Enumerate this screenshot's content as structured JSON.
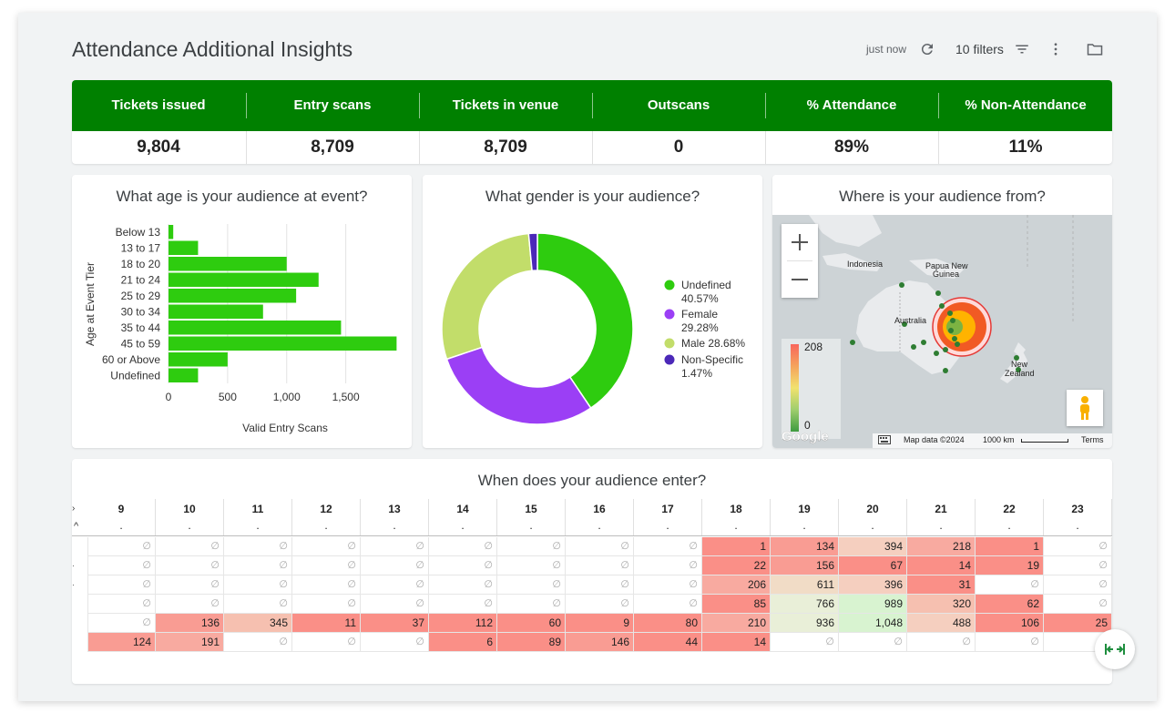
{
  "header": {
    "title": "Attendance Additional Insights",
    "refreshed": "just now",
    "filters_label": "10 filters"
  },
  "kpis": [
    {
      "label": "Tickets issued",
      "value": "9,804"
    },
    {
      "label": "Entry scans",
      "value": "8,709"
    },
    {
      "label": "Tickets in venue",
      "value": "8,709"
    },
    {
      "label": "Outscans",
      "value": "0"
    },
    {
      "label": "% Attendance",
      "value": "89%"
    },
    {
      "label": "% Non-Attendance",
      "value": "11%"
    }
  ],
  "age_card": {
    "title": "What age is your audience at event?"
  },
  "gender_card": {
    "title": "What gender is your audience?"
  },
  "map_card": {
    "title": "Where is your audience from?",
    "labels": {
      "indonesia": "Indonesia",
      "png1": "Papua New",
      "png2": "Guinea",
      "australia": "Australia",
      "nz1": "New",
      "nz2": "Zealand"
    },
    "legend_max": "208",
    "legend_min": "0",
    "google": "Google",
    "footer_data": "Map data ©2024",
    "footer_scale": "1000 km",
    "footer_terms": "Terms"
  },
  "chart_data": [
    {
      "type": "bar",
      "orientation": "horizontal",
      "title": "What age is your audience at event?",
      "ylabel": "Age at Event Tier",
      "xlabel": "Valid Entry Scans",
      "categories": [
        "Below 13",
        "13 to 17",
        "18 to 20",
        "21 to 24",
        "25 to 29",
        "30 to 34",
        "35 to 44",
        "45 to 59",
        "60 or Above",
        "Undefined"
      ],
      "values": [
        40,
        250,
        1000,
        1270,
        1080,
        800,
        1460,
        1930,
        500,
        250
      ],
      "xticks": [
        "0",
        "500",
        "1,000",
        "1,500"
      ],
      "xlim": [
        0,
        1950
      ],
      "color": "#2ecc0f",
      "grid": true
    },
    {
      "type": "pie",
      "donut": true,
      "title": "What gender is your audience?",
      "slices": [
        {
          "label": "Undefined",
          "pct_label": "40.57%",
          "value": 40.57,
          "color": "#2ecc0f"
        },
        {
          "label": "Female",
          "pct_label": "29.28%",
          "value": 29.28,
          "color": "#9b3ff5"
        },
        {
          "label": "Male",
          "pct_label": "28.68%",
          "value": 28.68,
          "color": "#c2dd6a"
        },
        {
          "label": "Non-Specific",
          "pct_label": "1.47%",
          "value": 1.47,
          "color": "#4b28b8"
        }
      ],
      "legend_position": "right"
    }
  ],
  "heat_table": {
    "title": "When does your audience enter?",
    "columns": [
      "9",
      "10",
      "11",
      "12",
      "13",
      "14",
      "15",
      "16",
      "17",
      "18",
      "19",
      "20",
      "21",
      "22",
      "23"
    ],
    "dots": [
      ".",
      ".",
      ".",
      ".",
      ".",
      ".",
      ".",
      ".",
      ".",
      ".",
      ".",
      ".",
      ".",
      ".",
      "."
    ],
    "empty_symbol": "∅",
    "rows": [
      [
        null,
        null,
        null,
        null,
        null,
        null,
        null,
        null,
        null,
        "1",
        "134",
        "394",
        "218",
        "1",
        null
      ],
      [
        null,
        null,
        null,
        null,
        null,
        null,
        null,
        null,
        null,
        "22",
        "156",
        "67",
        "14",
        "19",
        null
      ],
      [
        null,
        null,
        null,
        null,
        null,
        null,
        null,
        null,
        null,
        "206",
        "611",
        "396",
        "31",
        null,
        null
      ],
      [
        null,
        null,
        null,
        null,
        null,
        null,
        null,
        null,
        null,
        "85",
        "766",
        "989",
        "320",
        "62",
        null
      ],
      [
        null,
        "136",
        "345",
        "11",
        "37",
        "112",
        "60",
        "9",
        "80",
        "210",
        "936",
        "1,048",
        "488",
        "106",
        "25"
      ],
      [
        "124",
        "191",
        null,
        null,
        null,
        "6",
        "89",
        "146",
        "44",
        "14",
        null,
        null,
        null,
        null,
        null
      ]
    ]
  }
}
